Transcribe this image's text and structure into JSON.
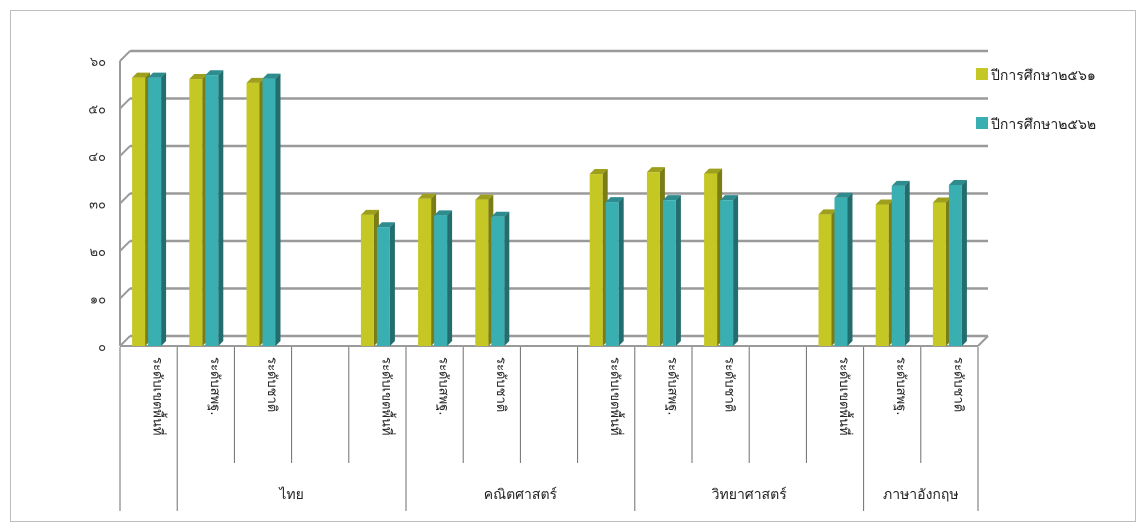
{
  "chart_data": {
    "type": "bar",
    "ylim": [
      0,
      60
    ],
    "yticks": [
      "๐",
      "๑๐",
      "๒๐",
      "๓๐",
      "๔๐",
      "๕๐",
      "๖๐"
    ],
    "grid": true,
    "legend_position": "right",
    "series": [
      {
        "name": "ปีการศึกษา๒๕๖๑",
        "color": "#c5c824",
        "values": [
          56.5,
          56.2,
          55.4,
          null,
          27.6,
          31.0,
          30.8,
          null,
          36.2,
          36.6,
          36.3,
          null,
          27.7,
          29.8,
          30.2
        ]
      },
      {
        "name": "ปีการศึกษา๒๕๖๒",
        "color": "#3aafb2",
        "values": [
          56.5,
          57.0,
          56.3,
          null,
          25.0,
          27.5,
          27.2,
          null,
          30.3,
          30.7,
          30.7,
          null,
          31.2,
          33.7,
          33.9
        ]
      }
    ],
    "categories": [
      "ระดับเขตพื้นที่",
      "ระดับสพฐ.",
      "ระดับชาติ",
      "",
      "ระดับเขตพื้นที่",
      "ระดับสพฐ.",
      "ระดับชาติ",
      "",
      "ระดับเขตพื้นที่",
      "ระดับสพฐ.",
      "ระดับชาติ",
      "",
      "ระดับเขตพื้นที่",
      "ระดับสพฐ.",
      "ระดับชาติ"
    ],
    "groups": [
      {
        "label": "ไทย",
        "start": 1,
        "end": 5
      },
      {
        "label": "คณิตศาสตร์",
        "start": 5,
        "end": 9
      },
      {
        "label": "วิทยาศาสตร์",
        "start": 9,
        "end": 13
      },
      {
        "label": "ภาษาอังกฤษ",
        "start": 13,
        "end": 15
      }
    ]
  }
}
